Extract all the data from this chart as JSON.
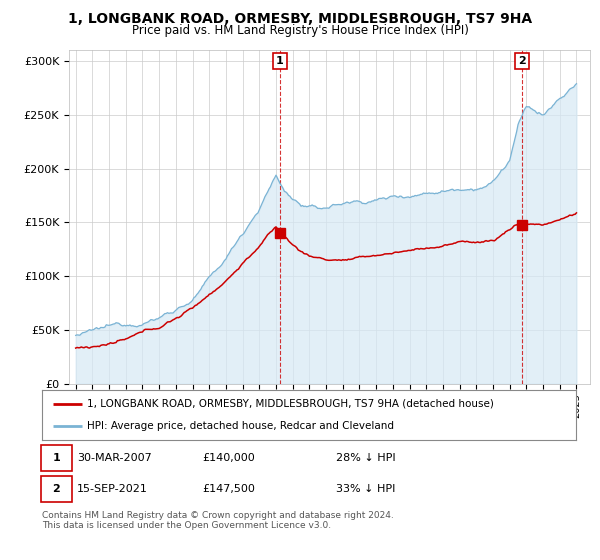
{
  "title": "1, LONGBANK ROAD, ORMESBY, MIDDLESBROUGH, TS7 9HA",
  "subtitle": "Price paid vs. HM Land Registry's House Price Index (HPI)",
  "ylim": [
    0,
    310000
  ],
  "yticks": [
    0,
    50000,
    100000,
    150000,
    200000,
    250000,
    300000
  ],
  "ytick_labels": [
    "£0",
    "£50K",
    "£100K",
    "£150K",
    "£200K",
    "£250K",
    "£300K"
  ],
  "xlim_start": 1994.6,
  "xlim_end": 2025.8,
  "sale1_year": 2007.24,
  "sale1_price": 140000,
  "sale1_date": "30-MAR-2007",
  "sale1_label": "28% ↓ HPI",
  "sale2_year": 2021.71,
  "sale2_price": 147500,
  "sale2_date": "15-SEP-2021",
  "sale2_label": "33% ↓ HPI",
  "legend_line1": "1, LONGBANK ROAD, ORMESBY, MIDDLESBROUGH, TS7 9HA (detached house)",
  "legend_line2": "HPI: Average price, detached house, Redcar and Cleveland",
  "footer": "Contains HM Land Registry data © Crown copyright and database right 2024.\nThis data is licensed under the Open Government Licence v3.0.",
  "hpi_color": "#7ab3d4",
  "hpi_fill_color": "#d6e9f5",
  "price_color": "#cc0000",
  "bg_color": "#ffffff",
  "grid_color": "#cccccc"
}
